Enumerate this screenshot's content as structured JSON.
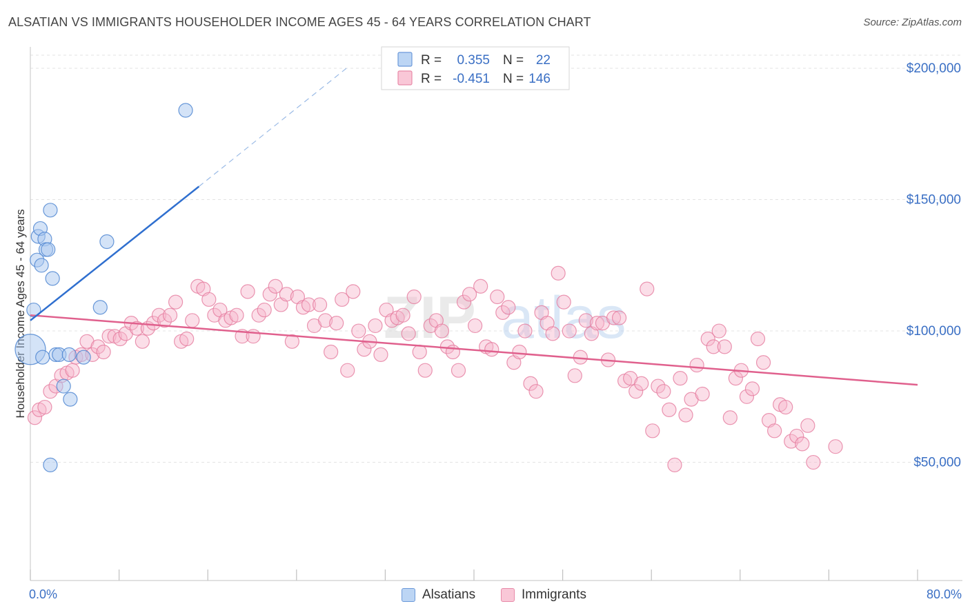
{
  "title": "ALSATIAN VS IMMIGRANTS HOUSEHOLDER INCOME AGES 45 - 64 YEARS CORRELATION CHART",
  "source": "Source: ZipAtlas.com",
  "watermark": "ZIPatlas",
  "colors": {
    "blue_fill": "#a9c8ef",
    "blue_stroke": "#4f86d1",
    "blue_line": "#2f6fcf",
    "pink_fill": "#f7b6cb",
    "pink_stroke": "#e57a9d",
    "pink_line": "#e0608d",
    "axis_text": "#3a6fc4",
    "grid": "#e3e3e3"
  },
  "legend": {
    "rows": [
      {
        "r_label": "R =",
        "r_value": "0.355",
        "n_label": "N =",
        "n_value": "22",
        "color": "blue"
      },
      {
        "r_label": "R =",
        "r_value": "-0.451",
        "n_label": "N =",
        "n_value": "146",
        "color": "pink"
      }
    ]
  },
  "bottom_legend": [
    {
      "label": "Alsatians",
      "color": "blue"
    },
    {
      "label": "Immigrants",
      "color": "pink"
    }
  ],
  "chart_data": {
    "type": "scatter",
    "title": "ALSATIAN VS IMMIGRANTS HOUSEHOLDER INCOME AGES 45 - 64 YEARS CORRELATION CHART",
    "xlabel": "",
    "ylabel": "Householder Income Ages 45 - 64 years",
    "xlim": [
      0,
      80
    ],
    "ylim": [
      5000,
      205000
    ],
    "x_tick_labels": [
      "0.0%",
      "80.0%"
    ],
    "y_ticks": [
      50000,
      100000,
      150000,
      200000
    ],
    "y_tick_labels": [
      "$50,000",
      "$100,000",
      "$150,000",
      "$200,000"
    ],
    "grid": true,
    "legend_position": "top-center",
    "series": [
      {
        "name": "Alsatians",
        "color": "blue",
        "r": 0.355,
        "n": 22,
        "trend": {
          "x0": 0,
          "y0": 104000,
          "x1": 15.2,
          "y1": 155000,
          "dashed_to_x": 28.5,
          "dashed_to_y": 200000
        },
        "points": [
          [
            0.0,
            93000,
            22
          ],
          [
            0.3,
            108000,
            10
          ],
          [
            0.6,
            127000,
            10
          ],
          [
            0.7,
            136000,
            10
          ],
          [
            0.9,
            139000,
            10
          ],
          [
            1.0,
            125000,
            10
          ],
          [
            1.1,
            90000,
            10
          ],
          [
            1.3,
            135000,
            10
          ],
          [
            1.4,
            131000,
            10
          ],
          [
            1.6,
            131000,
            10
          ],
          [
            1.8,
            146000,
            10
          ],
          [
            2.0,
            120000,
            10
          ],
          [
            2.3,
            91000,
            10
          ],
          [
            2.6,
            91000,
            10
          ],
          [
            3.0,
            79000,
            10
          ],
          [
            3.5,
            91000,
            10
          ],
          [
            3.6,
            74000,
            10
          ],
          [
            4.8,
            90000,
            10
          ],
          [
            6.3,
            109000,
            10
          ],
          [
            6.9,
            134000,
            10
          ],
          [
            14.0,
            184000,
            10
          ],
          [
            1.8,
            49000,
            10
          ]
        ]
      },
      {
        "name": "Immigrants",
        "color": "pink",
        "r": -0.451,
        "n": 146,
        "trend": {
          "x0": 0,
          "y0": 106000,
          "x1": 80,
          "y1": 79500
        },
        "points": [
          [
            0.4,
            67000
          ],
          [
            0.8,
            70000
          ],
          [
            1.3,
            71000
          ],
          [
            1.8,
            77000
          ],
          [
            2.3,
            79000
          ],
          [
            2.8,
            83000
          ],
          [
            3.3,
            84000
          ],
          [
            3.8,
            85000
          ],
          [
            4.1,
            90000
          ],
          [
            4.6,
            91000
          ],
          [
            5.1,
            96000
          ],
          [
            5.6,
            91000
          ],
          [
            6.1,
            94000
          ],
          [
            6.6,
            92000
          ],
          [
            7.1,
            98000
          ],
          [
            7.6,
            98000
          ],
          [
            8.1,
            97000
          ],
          [
            8.6,
            99000
          ],
          [
            9.1,
            103000
          ],
          [
            9.6,
            101000
          ],
          [
            10.1,
            96000
          ],
          [
            10.6,
            101000
          ],
          [
            11.1,
            103000
          ],
          [
            11.6,
            106000
          ],
          [
            12.1,
            104000
          ],
          [
            12.6,
            106000
          ],
          [
            13.1,
            111000
          ],
          [
            13.6,
            96000
          ],
          [
            14.1,
            97000
          ],
          [
            14.6,
            104000
          ],
          [
            15.1,
            117000
          ],
          [
            15.6,
            116000
          ],
          [
            16.1,
            112000
          ],
          [
            16.6,
            106000
          ],
          [
            17.1,
            108000
          ],
          [
            17.6,
            104000
          ],
          [
            18.1,
            105000
          ],
          [
            18.6,
            106000
          ],
          [
            19.1,
            98000
          ],
          [
            19.6,
            115000
          ],
          [
            20.1,
            98000
          ],
          [
            20.6,
            106000
          ],
          [
            21.1,
            108000
          ],
          [
            21.6,
            114000
          ],
          [
            22.1,
            117000
          ],
          [
            22.6,
            110000
          ],
          [
            23.1,
            114000
          ],
          [
            23.6,
            96000
          ],
          [
            24.1,
            113000
          ],
          [
            24.6,
            109000
          ],
          [
            25.1,
            110000
          ],
          [
            25.6,
            102000
          ],
          [
            26.1,
            110000
          ],
          [
            26.6,
            104000
          ],
          [
            27.1,
            92000
          ],
          [
            27.6,
            103000
          ],
          [
            28.1,
            112000
          ],
          [
            28.6,
            85000
          ],
          [
            29.1,
            115000
          ],
          [
            29.6,
            100000
          ],
          [
            30.1,
            93000
          ],
          [
            30.6,
            96000
          ],
          [
            31.1,
            102000
          ],
          [
            31.6,
            91000
          ],
          [
            32.1,
            108000
          ],
          [
            32.6,
            104000
          ],
          [
            33.1,
            105000
          ],
          [
            33.6,
            106000
          ],
          [
            34.1,
            99000
          ],
          [
            34.6,
            113000
          ],
          [
            35.1,
            92000
          ],
          [
            35.6,
            85000
          ],
          [
            36.1,
            102000
          ],
          [
            36.6,
            104000
          ],
          [
            37.1,
            100000
          ],
          [
            37.6,
            94000
          ],
          [
            38.1,
            92000
          ],
          [
            38.6,
            85000
          ],
          [
            39.1,
            111000
          ],
          [
            39.6,
            114000
          ],
          [
            40.1,
            102000
          ],
          [
            40.6,
            117000
          ],
          [
            41.1,
            94000
          ],
          [
            41.6,
            93000
          ],
          [
            42.1,
            113000
          ],
          [
            42.6,
            107000
          ],
          [
            43.1,
            109000
          ],
          [
            43.6,
            88000
          ],
          [
            44.1,
            92000
          ],
          [
            44.6,
            100000
          ],
          [
            45.1,
            80000
          ],
          [
            45.6,
            77000
          ],
          [
            46.1,
            107000
          ],
          [
            46.6,
            103000
          ],
          [
            47.1,
            99000
          ],
          [
            47.6,
            122000
          ],
          [
            48.1,
            111000
          ],
          [
            48.6,
            100000
          ],
          [
            49.1,
            83000
          ],
          [
            49.6,
            90000
          ],
          [
            50.1,
            104000
          ],
          [
            50.6,
            99000
          ],
          [
            51.1,
            103000
          ],
          [
            51.6,
            103000
          ],
          [
            52.1,
            89000
          ],
          [
            52.6,
            105000
          ],
          [
            53.1,
            105000
          ],
          [
            53.6,
            81000
          ],
          [
            54.1,
            82000
          ],
          [
            54.6,
            77000
          ],
          [
            55.1,
            80000
          ],
          [
            55.6,
            116000
          ],
          [
            56.1,
            62000
          ],
          [
            56.6,
            79000
          ],
          [
            57.1,
            77000
          ],
          [
            57.6,
            70000
          ],
          [
            58.1,
            49000
          ],
          [
            58.6,
            82000
          ],
          [
            59.1,
            68000
          ],
          [
            59.6,
            74000
          ],
          [
            60.1,
            87000
          ],
          [
            60.6,
            76000
          ],
          [
            61.1,
            97000
          ],
          [
            61.6,
            94000
          ],
          [
            62.1,
            100000
          ],
          [
            62.6,
            94000
          ],
          [
            63.1,
            67000
          ],
          [
            63.6,
            82000
          ],
          [
            64.1,
            85000
          ],
          [
            64.6,
            75000
          ],
          [
            65.1,
            78000
          ],
          [
            65.6,
            97000
          ],
          [
            66.1,
            88000
          ],
          [
            66.6,
            66000
          ],
          [
            67.1,
            62000
          ],
          [
            67.6,
            72000
          ],
          [
            68.1,
            71000
          ],
          [
            68.6,
            58000
          ],
          [
            69.1,
            60000
          ],
          [
            69.6,
            57000
          ],
          [
            70.1,
            64000
          ],
          [
            70.6,
            50000
          ],
          [
            72.6,
            56000
          ]
        ]
      }
    ]
  }
}
